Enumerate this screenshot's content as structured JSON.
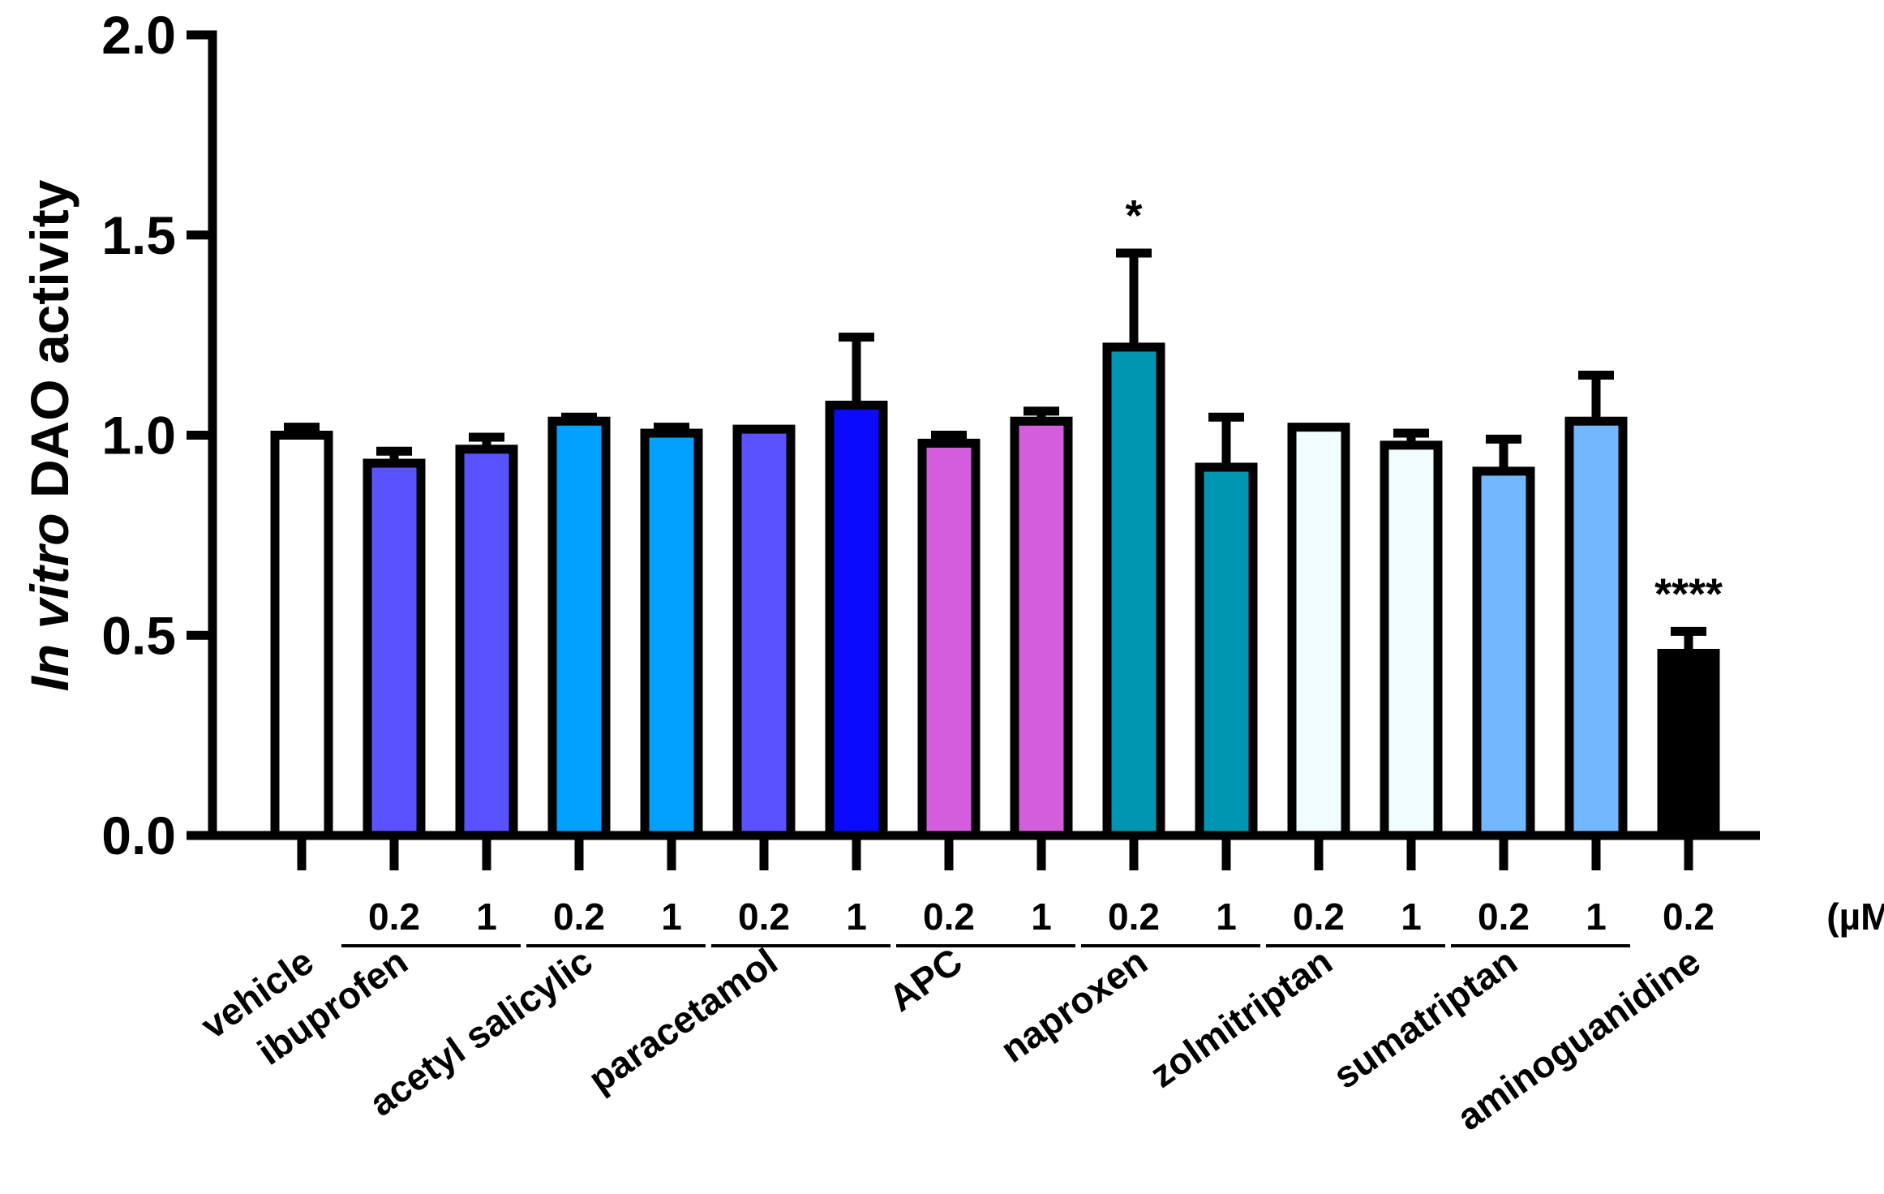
{
  "chart_data": {
    "type": "bar",
    "title": "",
    "xlabel": "",
    "ylabel_italic": "In vitro",
    "ylabel_rest": " DAO activity",
    "ylim": [
      0,
      2.0
    ],
    "yticks": [
      "0.0",
      "0.5",
      "1.0",
      "1.5",
      "2.0"
    ],
    "unit": "(µM)",
    "groups": [
      {
        "name": "vehicle",
        "bars": [
          0
        ]
      },
      {
        "name": "ibuprofen",
        "bars": [
          1,
          2
        ]
      },
      {
        "name": "acetyl salicylic",
        "bars": [
          3,
          4
        ]
      },
      {
        "name": "paracetamol",
        "bars": [
          5,
          6
        ]
      },
      {
        "name": "APC",
        "bars": [
          7,
          8
        ]
      },
      {
        "name": "naproxen",
        "bars": [
          9,
          10
        ]
      },
      {
        "name": "zolmitriptan",
        "bars": [
          11,
          12
        ]
      },
      {
        "name": "sumatriptan",
        "bars": [
          13,
          14
        ]
      },
      {
        "name": "aminoguanidine",
        "bars": [
          15
        ]
      }
    ],
    "bars": [
      {
        "label": "",
        "value": 1.0,
        "error": 0.02,
        "color": "#ffffff",
        "sig": ""
      },
      {
        "label": "0.2",
        "value": 0.93,
        "error": 0.03,
        "color": "#5a52ff",
        "sig": ""
      },
      {
        "label": "1",
        "value": 0.965,
        "error": 0.03,
        "color": "#5a52ff",
        "sig": ""
      },
      {
        "label": "0.2",
        "value": 1.035,
        "error": 0.01,
        "color": "#00a0ff",
        "sig": ""
      },
      {
        "label": "1",
        "value": 1.005,
        "error": 0.015,
        "color": "#00a0ff",
        "sig": ""
      },
      {
        "label": "0.2",
        "value": 1.015,
        "error": 0.0,
        "color": "#5a52ff",
        "sig": ""
      },
      {
        "label": "1",
        "value": 1.075,
        "error": 0.17,
        "color": "#0a0aff",
        "sig": ""
      },
      {
        "label": "0.2",
        "value": 0.98,
        "error": 0.02,
        "color": "#d35ddd",
        "sig": ""
      },
      {
        "label": "1",
        "value": 1.035,
        "error": 0.025,
        "color": "#d35ddd",
        "sig": ""
      },
      {
        "label": "0.2",
        "value": 1.22,
        "error": 0.235,
        "color": "#0095b0",
        "sig": "*"
      },
      {
        "label": "1",
        "value": 0.92,
        "error": 0.125,
        "color": "#0095b0",
        "sig": ""
      },
      {
        "label": "0.2",
        "value": 1.02,
        "error": 0.0,
        "color": "#f0fcfd",
        "sig": ""
      },
      {
        "label": "1",
        "value": 0.975,
        "error": 0.03,
        "color": "#f0fcfd",
        "sig": ""
      },
      {
        "label": "0.2",
        "value": 0.91,
        "error": 0.08,
        "color": "#72b7ff",
        "sig": ""
      },
      {
        "label": "1",
        "value": 1.035,
        "error": 0.115,
        "color": "#72b7ff",
        "sig": ""
      },
      {
        "label": "0.2",
        "value": 0.455,
        "error": 0.055,
        "color": "#000000",
        "sig": "****"
      }
    ]
  }
}
